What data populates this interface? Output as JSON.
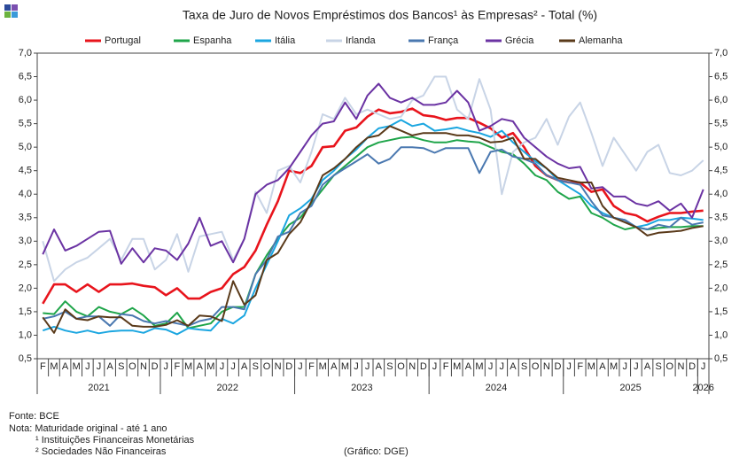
{
  "chart_data": {
    "type": "line",
    "title": "Taxa de Juro de Novos Empréstimos dos Bancos¹ às Empresas² - Total (%)",
    "categories": [
      "F",
      "M",
      "A",
      "M",
      "J",
      "J",
      "A",
      "S",
      "O",
      "N",
      "D",
      "J",
      "F",
      "M",
      "A",
      "M",
      "J",
      "J",
      "A",
      "S",
      "O",
      "N",
      "D",
      "J",
      "F",
      "M",
      "A",
      "M",
      "J",
      "J",
      "A",
      "S",
      "O",
      "N",
      "D",
      "J",
      "F",
      "M",
      "A",
      "M",
      "J",
      "J",
      "A",
      "S",
      "O",
      "N",
      "D",
      "J",
      "F",
      "M",
      "A",
      "M",
      "J",
      "J",
      "A",
      "S",
      "O",
      "N",
      "D",
      "J"
    ],
    "years": [
      "2021",
      "2022",
      "2023",
      "2024",
      "2025",
      "2026"
    ],
    "ylim": [
      0.5,
      7.0
    ],
    "yticks": [
      {
        "value": 0.5,
        "label": "0,5"
      },
      {
        "value": 1.0,
        "label": "1,0"
      },
      {
        "value": 1.5,
        "label": "1,5"
      },
      {
        "value": 2.0,
        "label": "2,0"
      },
      {
        "value": 2.5,
        "label": "2,5"
      },
      {
        "value": 3.0,
        "label": "3,0"
      },
      {
        "value": 3.5,
        "label": "3,5"
      },
      {
        "value": 4.0,
        "label": "4,0"
      },
      {
        "value": 4.5,
        "label": "4,5"
      },
      {
        "value": 5.0,
        "label": "5,0"
      },
      {
        "value": 5.5,
        "label": "5,5"
      },
      {
        "value": 6.0,
        "label": "6,0"
      },
      {
        "value": 6.5,
        "label": "6,5"
      },
      {
        "value": 7.0,
        "label": "7,0"
      }
    ],
    "y2lim": [
      0.5,
      7.0
    ],
    "y2ticks": [
      {
        "value": 0.5,
        "label": "0,5"
      },
      {
        "value": 1.0,
        "label": "1,0"
      },
      {
        "value": 1.5,
        "label": "1,5"
      },
      {
        "value": 2.0,
        "label": "2,0"
      },
      {
        "value": 2.5,
        "label": "2,5"
      },
      {
        "value": 3.0,
        "label": "3,0"
      },
      {
        "value": 3.5,
        "label": "3,5"
      },
      {
        "value": 4.0,
        "label": "4,0"
      },
      {
        "value": 4.5,
        "label": "4,5"
      },
      {
        "value": 5.0,
        "label": "5,0"
      },
      {
        "value": 5.5,
        "label": "5,5"
      },
      {
        "value": 6.0,
        "label": "6,0"
      },
      {
        "value": 6.5,
        "label": "6,5"
      },
      {
        "value": 7.0,
        "label": "7,0"
      }
    ],
    "legend": "top",
    "series": [
      {
        "name": "Portugal",
        "color": "#e8141c",
        "values": [
          1.67,
          2.08,
          2.08,
          1.92,
          2.08,
          1.92,
          2.08,
          2.08,
          2.1,
          2.05,
          2.02,
          1.85,
          2.0,
          1.78,
          1.78,
          1.92,
          2.0,
          2.3,
          2.45,
          2.8,
          3.35,
          3.85,
          4.5,
          4.45,
          4.6,
          5.0,
          5.02,
          5.35,
          5.42,
          5.65,
          5.8,
          5.72,
          5.75,
          5.82,
          5.68,
          5.65,
          5.58,
          5.62,
          5.62,
          5.52,
          5.4,
          5.2,
          5.3,
          5.0,
          4.6,
          4.4,
          4.3,
          4.25,
          4.25,
          4.05,
          4.1,
          3.75,
          3.6,
          3.55,
          3.42,
          3.52,
          3.6,
          3.6,
          3.63,
          3.65
        ]
      },
      {
        "name": "Espanha",
        "color": "#1fa54a",
        "values": [
          1.47,
          1.45,
          1.72,
          1.5,
          1.4,
          1.6,
          1.5,
          1.45,
          1.58,
          1.42,
          1.2,
          1.25,
          1.48,
          1.15,
          1.2,
          1.25,
          1.5,
          1.6,
          1.6,
          2.3,
          2.7,
          3.05,
          3.35,
          3.5,
          3.8,
          4.1,
          4.4,
          4.6,
          4.8,
          5.0,
          5.1,
          5.15,
          5.2,
          5.22,
          5.15,
          5.1,
          5.1,
          5.15,
          5.12,
          5.1,
          5.0,
          4.9,
          4.85,
          4.65,
          4.4,
          4.3,
          4.05,
          3.9,
          3.95,
          3.6,
          3.5,
          3.35,
          3.25,
          3.3,
          3.25,
          3.28,
          3.3,
          3.3,
          3.32,
          3.32
        ]
      },
      {
        "name": "Itália",
        "color": "#1ba6e0",
        "values": [
          1.1,
          1.18,
          1.1,
          1.05,
          1.1,
          1.04,
          1.08,
          1.1,
          1.1,
          1.05,
          1.15,
          1.12,
          1.02,
          1.15,
          1.12,
          1.1,
          1.35,
          1.25,
          1.42,
          2.0,
          2.5,
          3.0,
          3.55,
          3.7,
          3.9,
          4.3,
          4.5,
          4.75,
          4.95,
          5.2,
          5.4,
          5.45,
          5.58,
          5.45,
          5.5,
          5.35,
          5.38,
          5.42,
          5.35,
          5.3,
          5.22,
          5.35,
          5.1,
          4.9,
          4.7,
          4.55,
          4.3,
          4.15,
          4.0,
          3.75,
          3.6,
          3.5,
          3.45,
          3.3,
          3.35,
          3.45,
          3.45,
          3.5,
          3.48,
          3.45
        ]
      },
      {
        "name": "Irlanda",
        "color": "#c8d4e6",
        "values": [
          3.0,
          2.15,
          2.4,
          2.55,
          2.65,
          2.85,
          3.05,
          2.6,
          3.05,
          3.05,
          2.4,
          2.6,
          3.15,
          2.35,
          3.1,
          3.15,
          3.2,
          2.6,
          3.05,
          4.05,
          3.6,
          4.5,
          4.6,
          4.25,
          4.9,
          5.7,
          5.6,
          6.05,
          5.7,
          5.8,
          5.7,
          5.6,
          5.65,
          6.0,
          6.1,
          6.5,
          6.5,
          5.8,
          5.6,
          6.45,
          5.8,
          4.0,
          4.9,
          5.1,
          5.2,
          5.6,
          5.05,
          5.65,
          5.95,
          5.3,
          4.6,
          5.2,
          4.85,
          4.5,
          4.9,
          5.05,
          4.45,
          4.4,
          4.5,
          4.72
        ]
      },
      {
        "name": "França",
        "color": "#4a78b0",
        "values": [
          1.35,
          1.4,
          1.5,
          1.35,
          1.4,
          1.4,
          1.2,
          1.45,
          1.42,
          1.3,
          1.25,
          1.3,
          1.25,
          1.2,
          1.3,
          1.35,
          1.6,
          1.6,
          1.55,
          2.3,
          2.6,
          3.1,
          3.2,
          3.6,
          3.75,
          4.2,
          4.4,
          4.55,
          4.7,
          4.85,
          4.65,
          4.75,
          5.0,
          5.0,
          4.98,
          4.88,
          4.98,
          4.98,
          4.98,
          4.45,
          4.9,
          4.95,
          4.8,
          4.75,
          4.65,
          4.4,
          4.3,
          4.25,
          4.2,
          3.85,
          3.55,
          3.5,
          3.45,
          3.3,
          3.25,
          3.35,
          3.3,
          3.5,
          3.35,
          3.4
        ]
      },
      {
        "name": "Grécia",
        "color": "#6b33a3",
        "values": [
          2.72,
          3.25,
          2.8,
          2.9,
          3.05,
          3.2,
          3.22,
          2.52,
          2.85,
          2.55,
          2.85,
          2.8,
          2.6,
          2.95,
          3.5,
          2.9,
          3.0,
          2.55,
          3.05,
          4.0,
          4.2,
          4.3,
          4.55,
          4.9,
          5.25,
          5.5,
          5.55,
          5.95,
          5.6,
          6.1,
          6.35,
          6.05,
          5.95,
          6.05,
          5.9,
          5.9,
          5.95,
          6.2,
          5.95,
          5.35,
          5.45,
          5.6,
          5.55,
          5.2,
          5.0,
          4.8,
          4.65,
          4.55,
          4.58,
          4.12,
          4.15,
          3.95,
          3.95,
          3.8,
          3.75,
          3.85,
          3.65,
          3.8,
          3.5,
          4.1
        ]
      },
      {
        "name": "Alemanha",
        "color": "#5a3a1a",
        "values": [
          1.38,
          1.05,
          1.55,
          1.35,
          1.32,
          1.4,
          1.38,
          1.38,
          1.2,
          1.18,
          1.18,
          1.22,
          1.32,
          1.2,
          1.42,
          1.4,
          1.3,
          2.15,
          1.65,
          1.85,
          2.6,
          2.75,
          3.15,
          3.4,
          3.85,
          4.4,
          4.55,
          4.75,
          5.0,
          5.2,
          5.25,
          5.45,
          5.35,
          5.25,
          5.3,
          5.3,
          5.3,
          5.25,
          5.25,
          5.2,
          5.1,
          5.12,
          5.2,
          4.75,
          4.75,
          4.55,
          4.35,
          4.3,
          4.25,
          4.25,
          3.75,
          3.5,
          3.4,
          3.3,
          3.12,
          3.18,
          3.2,
          3.22,
          3.28,
          3.32
        ]
      }
    ],
    "source": "Fonte: BCE",
    "notes": [
      "Nota: Maturidade original - até 1 ano",
      "¹ Instituições Financeiras Monetárias",
      "² Sociedades Não Financeiras"
    ],
    "credit": "(Gráfico: DGE)"
  }
}
